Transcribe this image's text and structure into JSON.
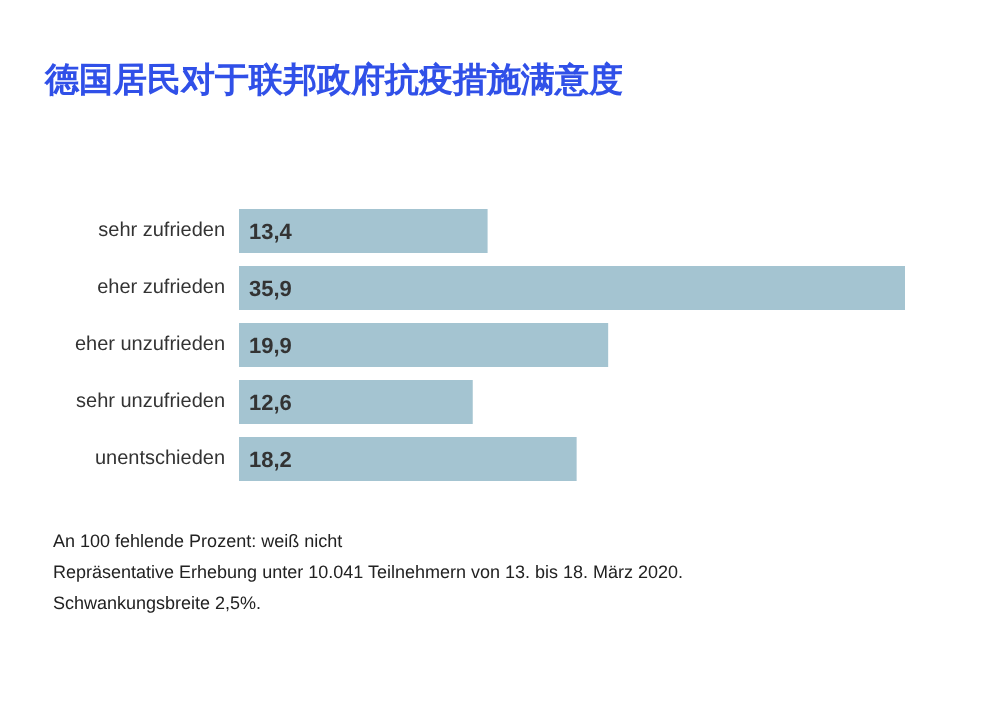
{
  "chart_data": {
    "type": "bar",
    "orientation": "horizontal",
    "title": "德国居民对于联邦政府抗疫措施满意度",
    "categories": [
      "sehr zufrieden",
      "eher zufrieden",
      "eher unzufrieden",
      "sehr unzufrieden",
      "unentschieden"
    ],
    "values": [
      13.4,
      35.9,
      19.9,
      12.6,
      18.2
    ],
    "value_labels": [
      "13,4",
      "35,9",
      "19,9",
      "12,6",
      "18,2"
    ],
    "color": "#a4c4d1",
    "grid": false,
    "annotations": [
      "An 100 fehlende Prozent: weiß nicht",
      "Repräsentative Erhebung unter 10.041 Teilnehmern von 13. bis 18. März 2020.",
      "Schwankungsbreite 2,5%."
    ]
  }
}
